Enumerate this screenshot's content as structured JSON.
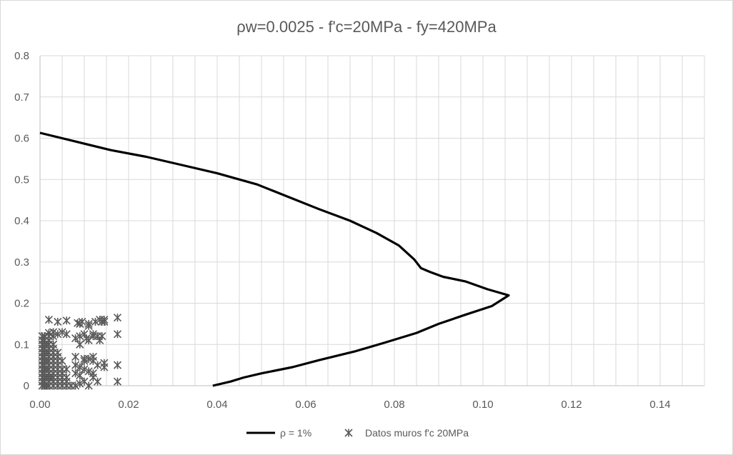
{
  "chart_data": {
    "type": "scatter",
    "title": "ρw=0.0025 - f'c=20MPa - fy=420MPa",
    "xlabel": "",
    "ylabel": "",
    "xlim": [
      0,
      0.15
    ],
    "ylim": [
      0,
      0.8
    ],
    "x_ticks": [
      "0.00",
      "0.02",
      "0.04",
      "0.06",
      "0.08",
      "0.10",
      "0.12",
      "0.14"
    ],
    "x_tick_values": [
      0,
      0.02,
      0.04,
      0.06,
      0.08,
      0.1,
      0.12,
      0.14
    ],
    "y_ticks": [
      "0",
      "0.1",
      "0.2",
      "0.3",
      "0.4",
      "0.5",
      "0.6",
      "0.7",
      "0.8"
    ],
    "y_tick_values": [
      0,
      0.1,
      0.2,
      0.3,
      0.4,
      0.5,
      0.6,
      0.7,
      0.8
    ],
    "grid_minor_x_step": 0.005,
    "grid_major_y_step": 0.1,
    "grid": true,
    "legend_position": "bottom",
    "series": [
      {
        "name": "ρ = 1%",
        "kind": "line",
        "color": "#000000",
        "x": [
          0.0,
          0.008,
          0.016,
          0.024,
          0.032,
          0.04,
          0.049,
          0.056,
          0.063,
          0.07,
          0.076,
          0.081,
          0.0845,
          0.086,
          0.088,
          0.091,
          0.096,
          0.101,
          0.1058,
          0.102,
          0.096,
          0.09,
          0.085,
          0.078,
          0.071,
          0.063,
          0.057,
          0.05,
          0.046,
          0.043,
          0.039
        ],
        "y": [
          0.613,
          0.592,
          0.571,
          0.555,
          0.535,
          0.515,
          0.488,
          0.458,
          0.428,
          0.4,
          0.37,
          0.34,
          0.306,
          0.285,
          0.276,
          0.264,
          0.253,
          0.234,
          0.219,
          0.193,
          0.172,
          0.15,
          0.128,
          0.105,
          0.083,
          0.062,
          0.045,
          0.03,
          0.02,
          0.01,
          0.0
        ],
        "color_legend": "#000000"
      },
      {
        "name": "Datos muros f'c 20MPa",
        "kind": "scatter",
        "marker": "x-star",
        "color": "#595959",
        "x": [
          0.0005,
          0.001,
          0.0015,
          0.002,
          0.003,
          0.004,
          0.005,
          0.006,
          0.007,
          0.0005,
          0.001,
          0.002,
          0.003,
          0.004,
          0.005,
          0.006,
          0.0005,
          0.001,
          0.0015,
          0.002,
          0.0025,
          0.003,
          0.004,
          0.005,
          0.006,
          0.0005,
          0.001,
          0.002,
          0.003,
          0.004,
          0.005,
          0.0005,
          0.001,
          0.0015,
          0.002,
          0.003,
          0.004,
          0.005,
          0.006,
          0.0005,
          0.001,
          0.002,
          0.003,
          0.004,
          0.0005,
          0.001,
          0.0015,
          0.002,
          0.003,
          0.004,
          0.005,
          0.0005,
          0.001,
          0.002,
          0.003,
          0.004,
          0.0005,
          0.001,
          0.0015,
          0.002,
          0.003,
          0.004,
          0.0005,
          0.001,
          0.002,
          0.003,
          0.0005,
          0.001,
          0.0015,
          0.002,
          0.003,
          0.0005,
          0.001,
          0.002,
          0.0005,
          0.001,
          0.002,
          0.003,
          0.008,
          0.009,
          0.01,
          0.011,
          0.012,
          0.013,
          0.008,
          0.009,
          0.01,
          0.011,
          0.012,
          0.013,
          0.008,
          0.009,
          0.01,
          0.011,
          0.012,
          0.008,
          0.01,
          0.012,
          0.009,
          0.011,
          0.013,
          0.008,
          0.01,
          0.012,
          0.009,
          0.011,
          0.014,
          0.0145,
          0.0145,
          0.0145,
          0.0175,
          0.0175,
          0.0175,
          0.0175,
          0.002,
          0.004,
          0.006,
          0.0085,
          0.0095,
          0.011,
          0.0125,
          0.0135,
          0.0145,
          0.014,
          0.0135,
          0.012,
          0.0105,
          0.009,
          0.006,
          0.005,
          0.004,
          0.003,
          0.002,
          0.001
        ],
        "y": [
          0.0,
          0.0,
          0.0,
          0.0,
          0.0,
          0.0,
          0.0,
          0.0,
          0.0,
          0.01,
          0.01,
          0.01,
          0.01,
          0.01,
          0.01,
          0.01,
          0.02,
          0.02,
          0.02,
          0.02,
          0.02,
          0.02,
          0.02,
          0.02,
          0.02,
          0.03,
          0.03,
          0.03,
          0.03,
          0.03,
          0.03,
          0.04,
          0.04,
          0.04,
          0.04,
          0.04,
          0.04,
          0.04,
          0.04,
          0.05,
          0.05,
          0.05,
          0.05,
          0.05,
          0.06,
          0.06,
          0.06,
          0.06,
          0.06,
          0.06,
          0.06,
          0.07,
          0.07,
          0.07,
          0.07,
          0.07,
          0.08,
          0.08,
          0.08,
          0.08,
          0.08,
          0.08,
          0.09,
          0.09,
          0.09,
          0.09,
          0.1,
          0.1,
          0.1,
          0.1,
          0.1,
          0.11,
          0.11,
          0.11,
          0.12,
          0.12,
          0.12,
          0.12,
          0.0,
          0.005,
          0.01,
          0.0,
          0.02,
          0.01,
          0.03,
          0.025,
          0.04,
          0.035,
          0.03,
          0.05,
          0.05,
          0.045,
          0.06,
          0.065,
          0.07,
          0.07,
          0.065,
          0.06,
          0.1,
          0.11,
          0.12,
          0.115,
          0.125,
          0.12,
          0.15,
          0.145,
          0.155,
          0.045,
          0.055,
          0.155,
          0.01,
          0.05,
          0.125,
          0.165,
          0.16,
          0.155,
          0.158,
          0.152,
          0.155,
          0.15,
          0.155,
          0.16,
          0.16,
          0.12,
          0.11,
          0.125,
          0.115,
          0.12,
          0.125,
          0.13,
          0.125,
          0.13,
          0.128,
          0.12
        ]
      }
    ]
  }
}
